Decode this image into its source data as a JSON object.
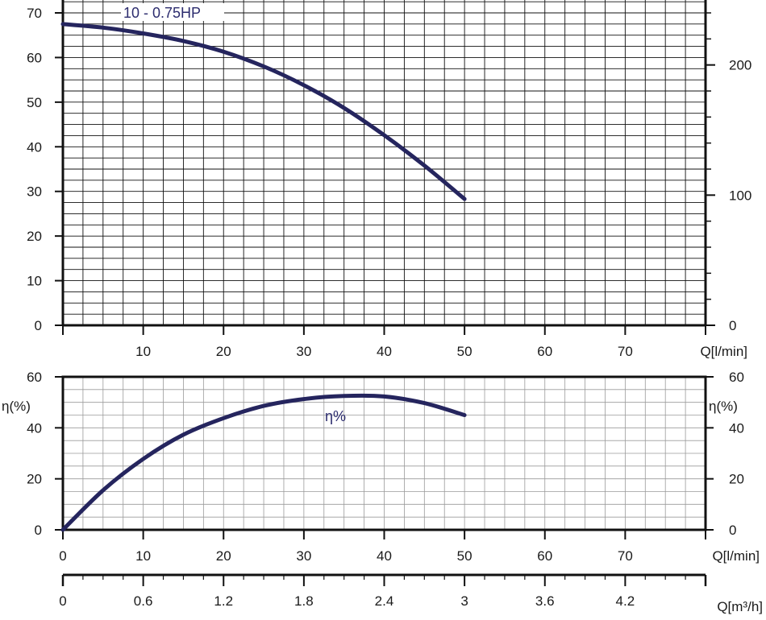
{
  "colors": {
    "axis": "#111111",
    "grid": "#111111",
    "grid_light": "#9a9a9a",
    "curve": "#25255e"
  },
  "chart_data": [
    {
      "type": "line",
      "name": "head-curve",
      "curve_label": "10 - 0.75HP",
      "x_unit_label": "Q[l/min]",
      "xlim": [
        0,
        80
      ],
      "ylim": [
        0,
        70
      ],
      "x_ticks": [
        10,
        20,
        30,
        40,
        50,
        60,
        70
      ],
      "x_tick_zero_label": "",
      "y_ticks": [
        0,
        10,
        20,
        30,
        40,
        50,
        60,
        70
      ],
      "right_axis": {
        "ylim": [
          0,
          240
        ],
        "labeled_ticks": [
          0,
          100,
          200
        ]
      },
      "grid": true,
      "series": [
        {
          "x": [
            0,
            5,
            10,
            15,
            20,
            25,
            30,
            35,
            40,
            45,
            50
          ],
          "y": [
            67.5,
            66.7,
            65.4,
            63.7,
            61.3,
            58.0,
            53.8,
            48.7,
            42.6,
            35.8,
            28.3
          ]
        }
      ]
    },
    {
      "type": "line",
      "name": "efficiency-curve",
      "curve_label": "η%",
      "ylabel": "η(%)",
      "x_unit_label": "Q[l/min]",
      "xlim": [
        0,
        80
      ],
      "ylim": [
        0,
        60
      ],
      "x_ticks": [
        0,
        10,
        20,
        30,
        40,
        50,
        60,
        70
      ],
      "y_ticks": [
        0,
        20,
        40,
        60
      ],
      "grid": true,
      "series": [
        {
          "x": [
            0,
            5,
            10,
            15,
            20,
            25,
            30,
            35,
            40,
            45,
            50
          ],
          "y": [
            0,
            15.5,
            27.8,
            37.3,
            43.8,
            48.6,
            51.3,
            52.5,
            52.3,
            49.7,
            45.0
          ]
        }
      ]
    },
    {
      "type": "axis",
      "name": "flow-m3h-scale",
      "x_unit_label": "Q[m³/h]",
      "xlim": [
        0,
        4.8
      ],
      "x_ticks": [
        "0",
        "0.6",
        "1.2",
        "1.8",
        "2.4",
        "3",
        "3.6",
        "4.2"
      ]
    }
  ]
}
